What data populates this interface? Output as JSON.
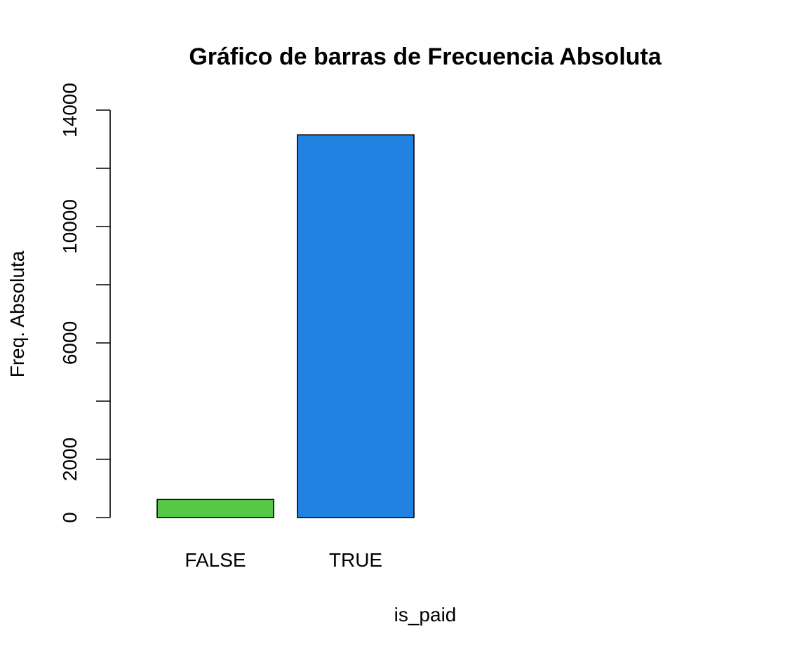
{
  "chart_data": {
    "type": "bar",
    "title": "Gráfico de barras de Frecuencia Absoluta",
    "xlabel": "is_paid",
    "ylabel": "Freq. Absoluta",
    "categories": [
      "FALSE",
      "TRUE"
    ],
    "values": [
      620,
      13150
    ],
    "bar_colors": [
      "#54C945",
      "#2182E2"
    ],
    "yticks": [
      0,
      2000,
      6000,
      10000,
      14000
    ],
    "ytick_marks": [
      0,
      2000,
      4000,
      6000,
      8000,
      10000,
      12000,
      14000
    ],
    "ylim": [
      0,
      14000
    ],
    "grid": false,
    "legend": "none"
  }
}
